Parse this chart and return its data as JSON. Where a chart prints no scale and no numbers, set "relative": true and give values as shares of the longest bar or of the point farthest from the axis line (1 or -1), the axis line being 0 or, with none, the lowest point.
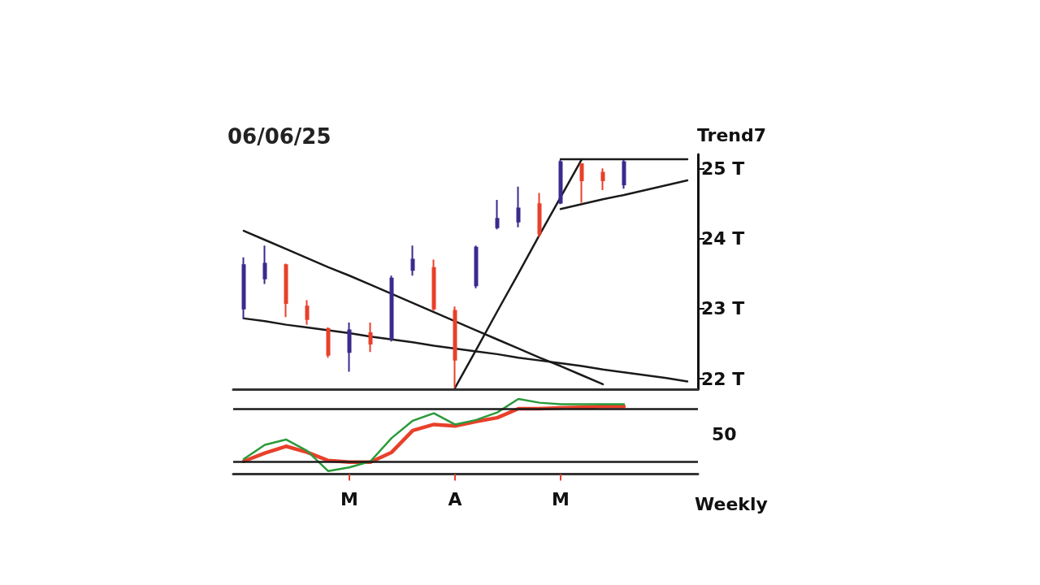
{
  "chart_data": [
    {
      "type": "candlestick",
      "title": "06/06/25",
      "annotations": [
        "Trend7"
      ],
      "categories": [
        null,
        null,
        null,
        null,
        null,
        null,
        null,
        null,
        null,
        null,
        null,
        null,
        null,
        null,
        null,
        null,
        null,
        null,
        null,
        null,
        null,
        null
      ],
      "ohlc": [
        [
          23.0,
          23.73,
          22.85,
          23.62
        ],
        [
          23.43,
          23.9,
          23.35,
          23.64
        ],
        [
          23.62,
          23.64,
          22.88,
          23.08
        ],
        [
          23.03,
          23.12,
          22.77,
          22.85
        ],
        [
          22.71,
          22.73,
          22.3,
          22.34
        ],
        [
          22.38,
          22.8,
          22.1,
          22.69
        ],
        [
          22.65,
          22.8,
          22.38,
          22.5
        ],
        [
          22.57,
          23.47,
          22.53,
          23.43
        ],
        [
          23.55,
          23.9,
          23.47,
          23.7
        ],
        [
          23.58,
          23.7,
          22.97,
          23.0
        ],
        [
          22.97,
          23.03,
          21.87,
          22.27
        ],
        [
          23.33,
          23.9,
          23.29,
          23.87
        ],
        [
          24.16,
          24.55,
          24.13,
          24.28
        ],
        [
          24.24,
          24.74,
          24.16,
          24.43
        ],
        [
          24.49,
          24.65,
          24.02,
          24.07
        ],
        [
          24.51,
          25.12,
          24.49,
          25.09
        ],
        [
          25.06,
          25.07,
          24.51,
          24.83
        ],
        [
          24.94,
          25.0,
          24.69,
          24.83
        ],
        [
          24.77,
          25.12,
          24.71,
          25.09
        ],
        null,
        null,
        null
      ],
      "colors": [
        "#3b2a8e",
        "#3b2a8e",
        "#e8402a",
        "#e8402a",
        "#e8402a",
        "#3b2a8e",
        "#e8402a",
        "#3b2a8e",
        "#3b2a8e",
        "#e8402a",
        "#e8402a",
        "#3b2a8e",
        "#3b2a8e",
        "#3b2a8e",
        "#e8402a",
        "#3b2a8e",
        "#e8402a",
        "#e8402a",
        "#3b2a8e",
        null,
        null,
        null
      ],
      "ylim": [
        21.85,
        25.2
      ],
      "yticks": [
        {
          "value": 22,
          "label": "22 T"
        },
        {
          "value": 23,
          "label": "23 T"
        },
        {
          "value": 24,
          "label": "24 T"
        },
        {
          "value": 25,
          "label": "25 T"
        }
      ],
      "tick_labels": "y",
      "marker": "none",
      "line_style": "solid",
      "series": [
        {
          "type": "line",
          "color": "#1a1a1a",
          "values": [
            24.11,
            23.98,
            23.85,
            23.72,
            23.59,
            23.47,
            23.34,
            23.21,
            23.08,
            22.95,
            22.82,
            22.69,
            22.56,
            22.43,
            22.3,
            22.18,
            22.05,
            21.92,
            null,
            null,
            null,
            null
          ]
        },
        {
          "type": "line",
          "color": "#1a1a1a",
          "values": [
            22.86,
            22.82,
            22.77,
            22.73,
            22.69,
            22.65,
            22.6,
            22.56,
            22.52,
            22.47,
            22.43,
            22.39,
            22.35,
            22.3,
            22.26,
            22.22,
            22.18,
            22.13,
            22.09,
            22.05,
            22.01,
            21.96
          ]
        },
        {
          "type": "line",
          "color": "#1a1a1a",
          "values": [
            null,
            null,
            null,
            null,
            null,
            null,
            null,
            null,
            null,
            null,
            21.87,
            22.41,
            22.96,
            23.5,
            24.05,
            24.59,
            25.13,
            null,
            null,
            null,
            null,
            null
          ]
        },
        {
          "type": "line",
          "color": "#1a1a1a",
          "values": [
            null,
            null,
            null,
            null,
            null,
            null,
            null,
            null,
            null,
            null,
            null,
            null,
            null,
            null,
            null,
            24.42,
            24.49,
            24.56,
            24.62,
            24.69,
            24.76,
            24.83
          ]
        },
        {
          "type": "line",
          "color": "#1a1a1a",
          "values": [
            null,
            null,
            null,
            null,
            null,
            null,
            null,
            null,
            null,
            null,
            null,
            null,
            null,
            null,
            null,
            25.13,
            25.13,
            25.13,
            25.13,
            25.13,
            25.13,
            25.13
          ]
        }
      ]
    },
    {
      "type": "line",
      "relative": true,
      "annotations": [
        "50",
        "Weekly"
      ],
      "categories": [
        null,
        null,
        null,
        null,
        null,
        "M",
        null,
        null,
        null,
        null,
        "A",
        null,
        null,
        null,
        null,
        "M",
        null,
        null,
        null,
        null,
        null,
        null
      ],
      "tick_labels": "x",
      "marker": "none",
      "line_style": "solid",
      "ref_lines": [
        {
          "axis": "y",
          "value": 0.87,
          "color": "#1a1a1a"
        },
        {
          "axis": "y",
          "value": 0.16,
          "color": "#1a1a1a"
        }
      ],
      "series": [
        {
          "color": "#e8402a",
          "values": [
            0.17,
            0.28,
            0.37,
            0.29,
            0.18,
            0.16,
            0.16,
            0.29,
            0.58,
            0.66,
            0.64,
            0.7,
            0.75,
            0.87,
            0.87,
            0.88,
            0.89,
            0.9,
            0.9,
            null,
            null,
            null
          ]
        },
        {
          "color": "#2a9a3a",
          "values": [
            0.2,
            0.39,
            0.46,
            0.31,
            0.04,
            0.09,
            0.17,
            0.48,
            0.71,
            0.81,
            0.66,
            0.72,
            0.82,
            1.0,
            0.95,
            0.93,
            0.93,
            0.93,
            0.93,
            null,
            null,
            null
          ]
        }
      ]
    }
  ]
}
